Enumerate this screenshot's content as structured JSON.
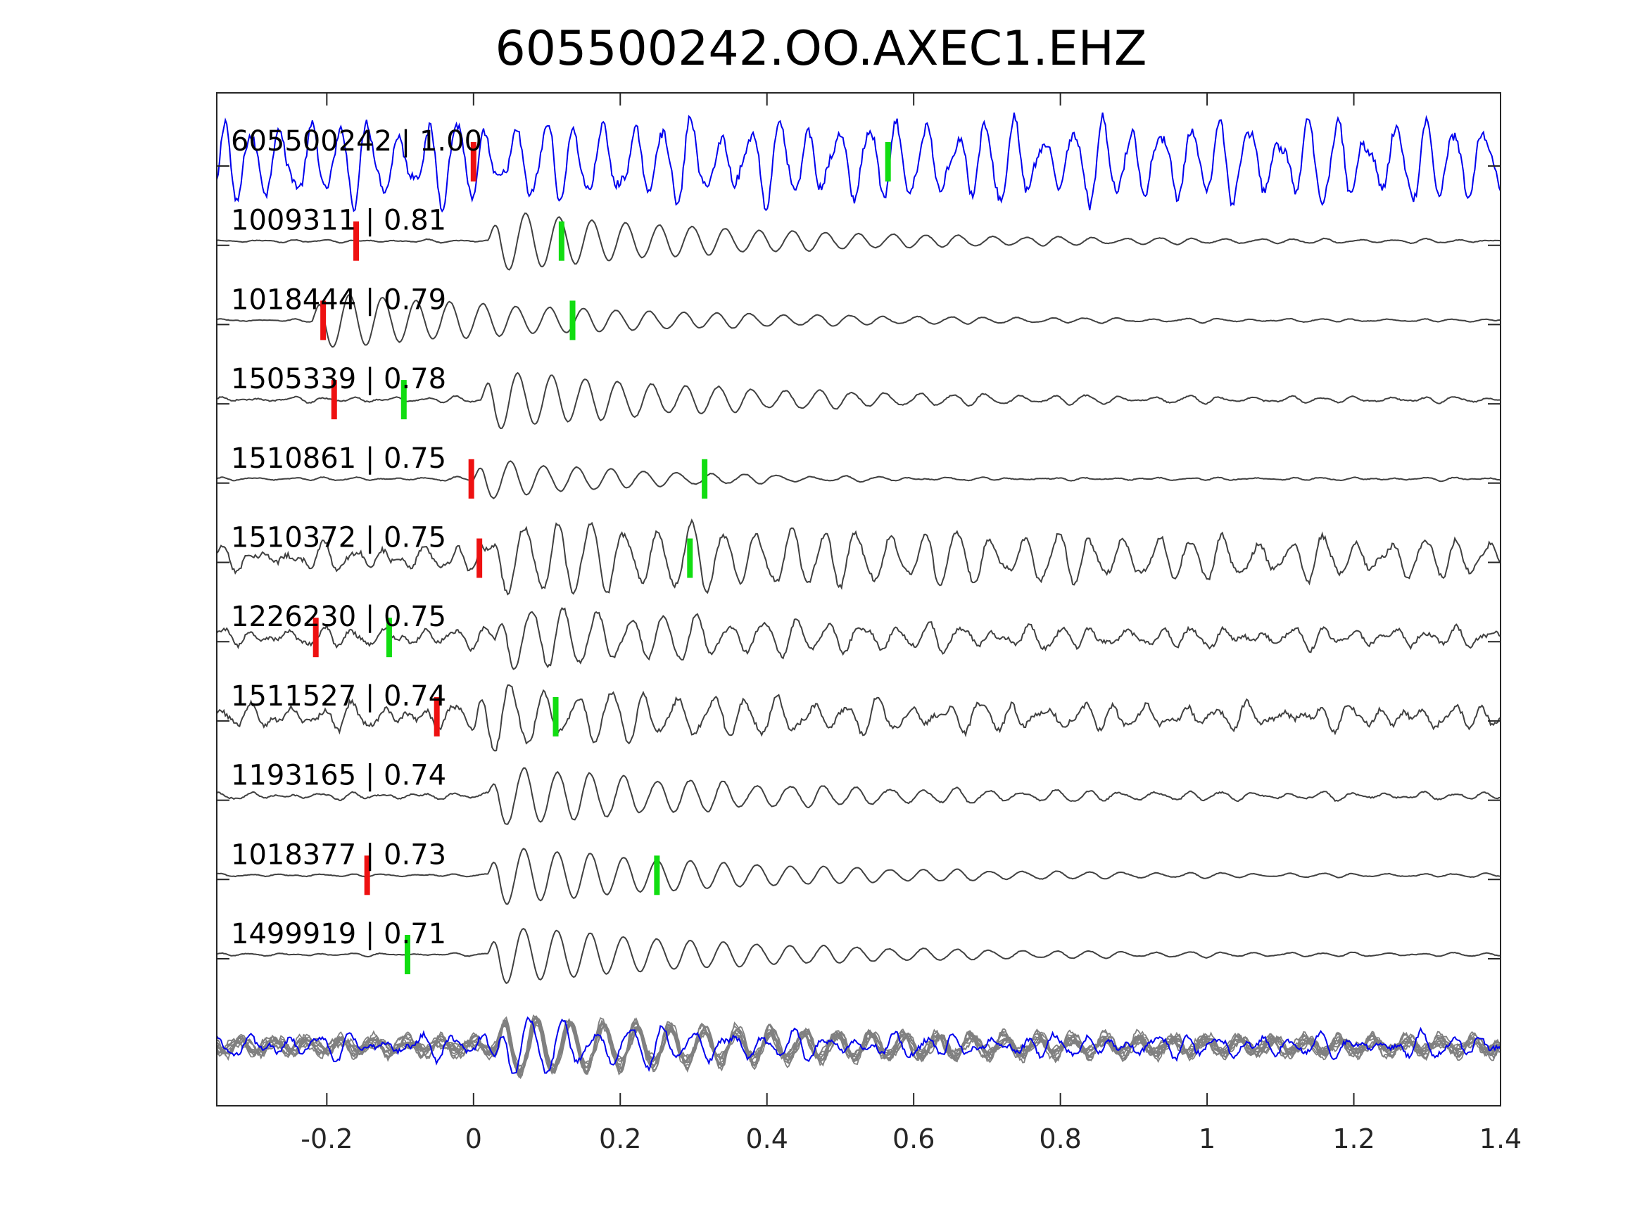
{
  "chart_data": {
    "type": "line",
    "title": "605500242.OO.AXEC1.EHZ",
    "xlabel": "",
    "ylabel": "",
    "xlim": [
      -0.35,
      1.4
    ],
    "xticks": [
      -0.2,
      0,
      0.2,
      0.4,
      0.6,
      0.8,
      1,
      1.2,
      1.4
    ],
    "xtick_labels": [
      "-0.2",
      "0",
      "0.2",
      "0.4",
      "0.6",
      "0.8",
      "1",
      "1.2",
      "1.4"
    ],
    "grid": false,
    "colors": {
      "template": "#0000ee",
      "matches": "#404040",
      "stack": "#808080",
      "p_pick": "#ee1111",
      "s_pick": "#11dd11",
      "axes": "#262626"
    },
    "series": [
      {
        "name": "605500242",
        "cc": "1.00",
        "label": "605500242 | 1.00",
        "p_pick": 0.0,
        "s_pick": 0.565,
        "onset": -0.35,
        "amp": 0.9,
        "noise": 0.85,
        "decay": 0.0,
        "freq": 25,
        "template": true
      },
      {
        "name": "1009311",
        "cc": "0.81",
        "label": "1009311 | 0.81",
        "p_pick": -0.16,
        "s_pick": 0.12,
        "onset": 0.02,
        "amp": 1.0,
        "noise": 0.05,
        "decay": 3.0,
        "freq": 22
      },
      {
        "name": "1018444",
        "cc": "0.79",
        "label": "1018444 | 0.79",
        "p_pick": -0.205,
        "s_pick": 0.135,
        "onset": -0.22,
        "amp": 0.95,
        "noise": 0.05,
        "decay": 2.5,
        "freq": 22
      },
      {
        "name": "1505339",
        "cc": "0.78",
        "label": "1505339 | 0.78",
        "p_pick": -0.19,
        "s_pick": -0.095,
        "onset": 0.01,
        "amp": 1.0,
        "noise": 0.1,
        "decay": 3.0,
        "freq": 22
      },
      {
        "name": "1510861",
        "cc": "0.75",
        "label": "1510861 | 0.75",
        "p_pick": -0.003,
        "s_pick": 0.315,
        "onset": 0.0,
        "amp": 0.7,
        "noise": 0.06,
        "decay": 4.0,
        "freq": 22
      },
      {
        "name": "1510372",
        "cc": "0.75",
        "label": "1510372 | 0.75",
        "p_pick": 0.008,
        "s_pick": 0.295,
        "onset": 0.02,
        "amp": 0.9,
        "noise": 0.45,
        "decay": 1.0,
        "freq": 22
      },
      {
        "name": "1226230",
        "cc": "0.75",
        "label": "1226230 | 0.75",
        "p_pick": -0.215,
        "s_pick": -0.115,
        "onset": 0.03,
        "amp": 1.05,
        "noise": 0.35,
        "decay": 2.0,
        "freq": 22
      },
      {
        "name": "1511527",
        "cc": "0.74",
        "label": "1511527 | 0.74",
        "p_pick": -0.05,
        "s_pick": 0.112,
        "onset": 0.0,
        "amp": 1.0,
        "noise": 0.45,
        "decay": 1.5,
        "freq": 22
      },
      {
        "name": "1193165",
        "cc": "0.74",
        "label": "1193165 | 0.74",
        "p_pick": null,
        "s_pick": null,
        "onset": 0.02,
        "amp": 1.0,
        "noise": 0.12,
        "decay": 3.0,
        "freq": 22
      },
      {
        "name": "1018377",
        "cc": "0.73",
        "label": "1018377 | 0.73",
        "p_pick": -0.145,
        "s_pick": 0.25,
        "onset": 0.02,
        "amp": 1.0,
        "noise": 0.05,
        "decay": 3.0,
        "freq": 22
      },
      {
        "name": "1499919",
        "cc": "0.71",
        "label": "1499919 | 0.71",
        "p_pick": null,
        "s_pick": -0.09,
        "onset": 0.02,
        "amp": 1.0,
        "noise": 0.05,
        "decay": 3.0,
        "freq": 22
      }
    ],
    "stack": {
      "amp": 0.9,
      "onset": 0.03,
      "freq": 22,
      "decay": 2.5,
      "noise": 0.35
    }
  }
}
